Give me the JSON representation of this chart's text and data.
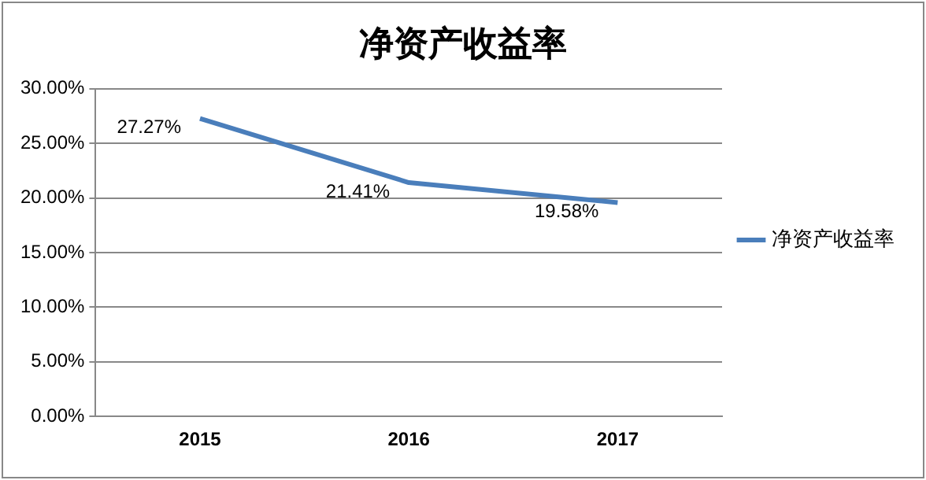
{
  "chart_data": {
    "type": "line",
    "title": "净资产收益率",
    "categories": [
      "2015",
      "2016",
      "2017"
    ],
    "series": [
      {
        "name": "净资产收益率",
        "color": "#4a7ebb",
        "values": [
          27.27,
          21.41,
          19.58
        ],
        "value_labels": [
          "27.27%",
          "21.41%",
          "19.58%"
        ]
      }
    ],
    "ylim": [
      0,
      30
    ],
    "yticks": [
      {
        "value": 0,
        "label": "0.00%"
      },
      {
        "value": 5,
        "label": "5.00%"
      },
      {
        "value": 10,
        "label": "10.00%"
      },
      {
        "value": 15,
        "label": "15.00%"
      },
      {
        "value": 20,
        "label": "20.00%"
      },
      {
        "value": 25,
        "label": "25.00%"
      },
      {
        "value": 30,
        "label": "30.00%"
      }
    ],
    "grid": "y",
    "legend": "right",
    "marker": "none",
    "line_style": "solid"
  }
}
